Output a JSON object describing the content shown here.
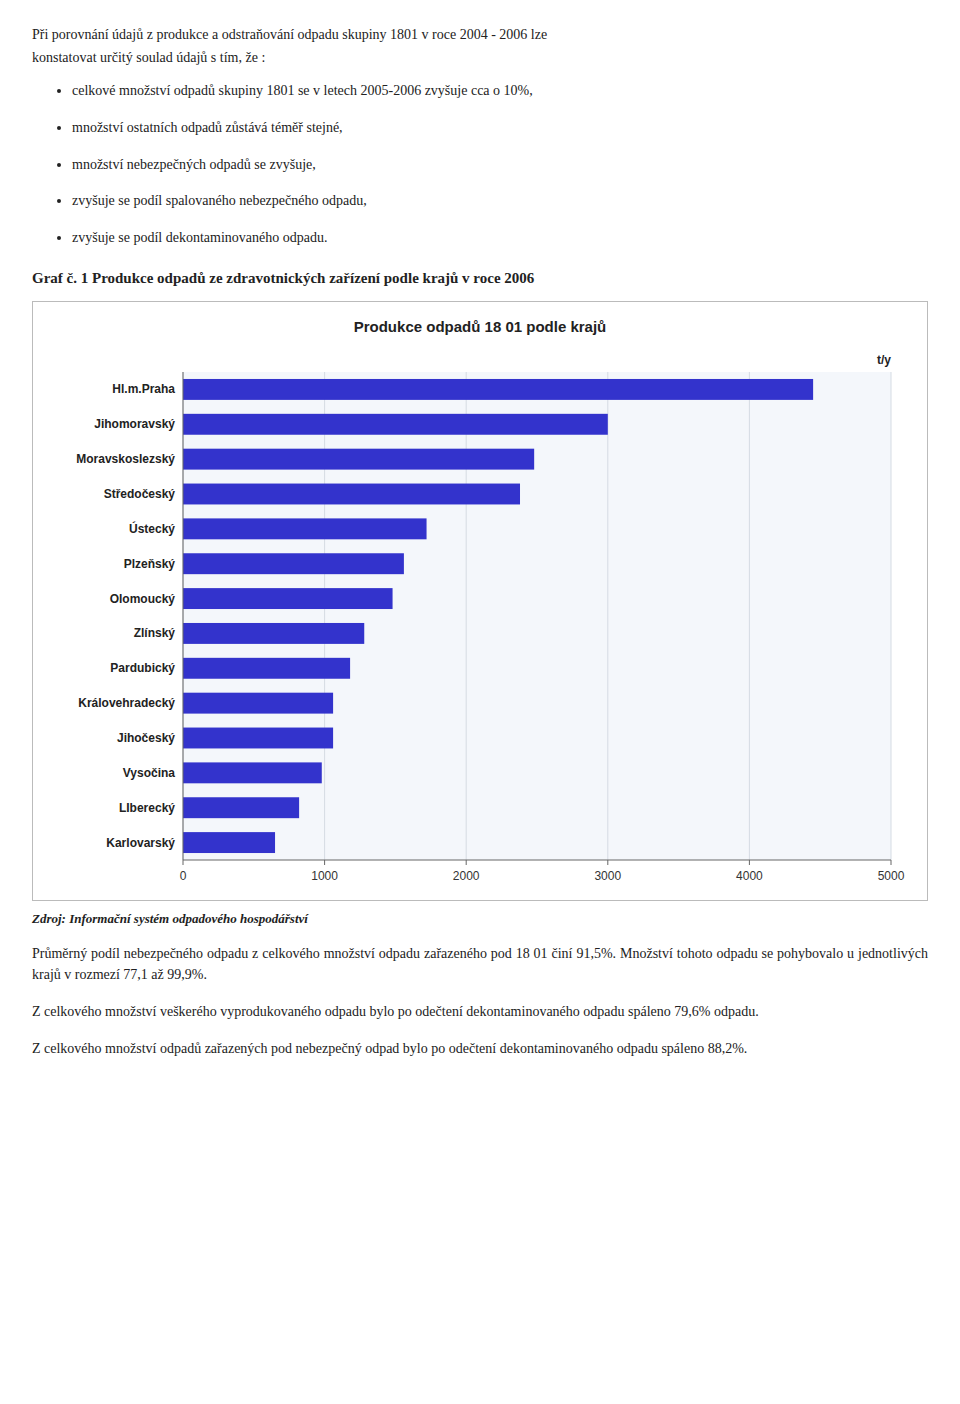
{
  "header_lines": [
    "Při porovnání údajů z produkce a odstraňování odpadu skupiny 1801 v roce 2004 - 2006 lze",
    "konstatovat určitý soulad údajů s tím,  že :"
  ],
  "bullet_points": [
    "celkové množství odpadů skupiny 1801 se v letech 2005-2006 zvyšuje cca o 10%,",
    "množství ostatních odpadů  zůstává téměř stejné,",
    "množství  nebezpečných odpadů se zvyšuje,",
    "zvyšuje se podíl spalovaného  nebezpečného odpadu,",
    "zvyšuje se podíl dekontaminovaného odpadu."
  ],
  "graph_caption": "Graf č. 1 Produkce odpadů ze zdravotnických zařízení podle krajů v roce 2006",
  "source_text": "Zdroj: Informační systém odpadového hospodářství",
  "footer_paragraphs": [
    "Průměrný podíl nebezpečného odpadu  z celkového množství odpadu zařazeného pod 18 01 činí 91,5%. Množství tohoto odpadu se pohybovalo u jednotlivých krajů v rozmezí 77,1 až 99,9%.",
    "Z celkového množství veškerého vyprodukovaného odpadu bylo po odečtení dekontaminovaného odpadu spáleno 79,6% odpadu.",
    "Z celkového množství odpadů zařazených pod nebezpečný odpad bylo po odečtení dekontaminovaného odpadu spáleno 88,2%."
  ],
  "chart_data": {
    "type": "bar",
    "orientation": "horizontal",
    "title": "Produkce odpadů 18 01 podle krajů",
    "xlabel": "t/y",
    "categories": [
      "Hl.m.Praha",
      "Jihomoravský",
      "Moravskoslezský",
      "Středočeský",
      "Ústecký",
      "Plzeňský",
      "Olomoucký",
      "Zlínský",
      "Pardubický",
      "Královehradecký",
      "Jihočeský",
      "Vysočina",
      "LIberecký",
      "Karlovarský"
    ],
    "values": [
      4450,
      3000,
      2480,
      2380,
      1720,
      1560,
      1480,
      1280,
      1180,
      1060,
      1060,
      980,
      820,
      650
    ],
    "color": "#3333cc",
    "xlim": [
      0,
      5000
    ],
    "xticks": [
      0,
      1000,
      2000,
      3000,
      4000,
      5000
    ],
    "grid": true
  }
}
